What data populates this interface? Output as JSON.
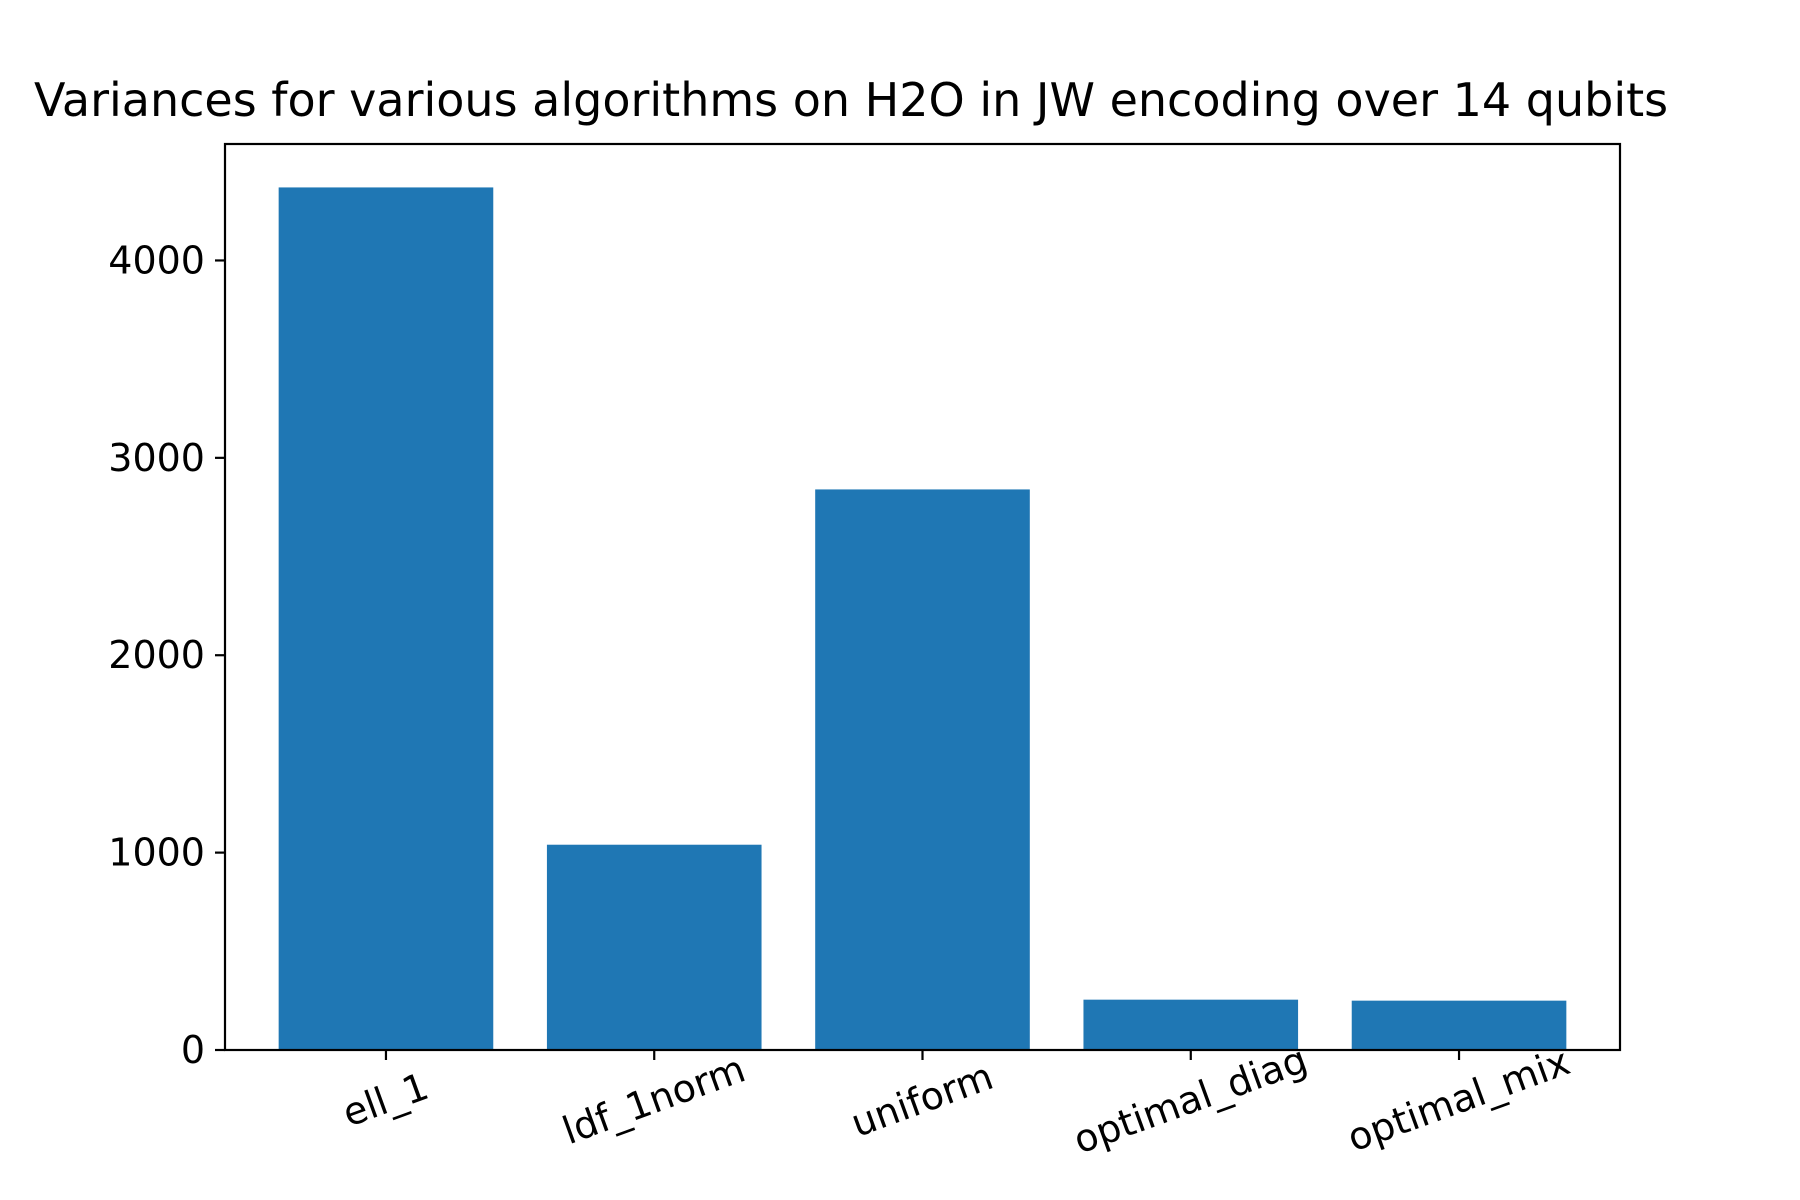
{
  "chart_data": {
    "type": "bar",
    "title": "Variances for various algorithms on H2O in JW encoding over 14 qubits",
    "xlabel": "",
    "ylabel": "",
    "categories": [
      "ell_1",
      "ldf_1norm",
      "uniform",
      "optimal_diag",
      "optimal_mix"
    ],
    "values": [
      4370,
      1040,
      2840,
      255,
      250
    ],
    "ylim": [
      0,
      4590
    ],
    "yticks": [
      0,
      1000,
      2000,
      3000,
      4000
    ],
    "ytick_labels": [
      "0",
      "1000",
      "2000",
      "3000",
      "4000"
    ],
    "xtick_rotation_deg": -20,
    "bar_color": "#1f77b4",
    "grid": false,
    "legend": "none"
  }
}
